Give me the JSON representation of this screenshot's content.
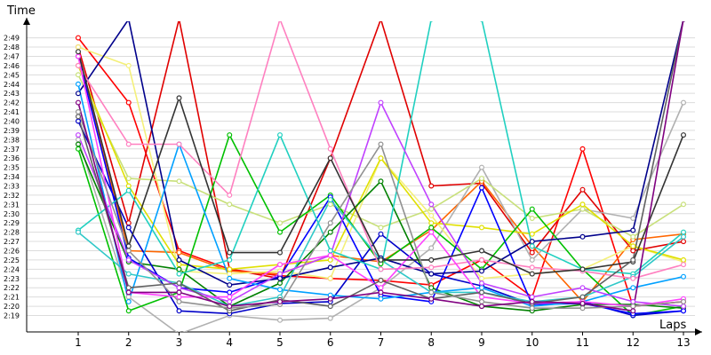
{
  "chart_data": {
    "type": "line",
    "xlabel": "Laps",
    "ylabel": "Time",
    "x": [
      1,
      2,
      3,
      4,
      5,
      6,
      7,
      8,
      9,
      10,
      11,
      12,
      13
    ],
    "y_ticks": [
      "2:19",
      "2:20",
      "2:21",
      "2:22",
      "2:23",
      "2:24",
      "2:25",
      "2:26",
      "2:27",
      "2:28",
      "2:29",
      "2:30",
      "2:31",
      "2:32",
      "2:33",
      "2:34",
      "2:35",
      "2:36",
      "2:37",
      "2:38",
      "2:39",
      "2:40",
      "2:41",
      "2:42",
      "2:43",
      "2:44",
      "2:45",
      "2:46",
      "2:47",
      "2:48",
      "2:49"
    ],
    "ylim_seconds": [
      138.3,
      171
    ],
    "grid": true,
    "legend": "none",
    "series": [
      {
        "color": "#ff0000",
        "values": [
          169,
          162,
          146,
          144,
          143.3,
          143,
          142.8,
          142.3,
          145,
          141,
          157,
          140,
          140.5
        ]
      },
      {
        "color": "#e00000",
        "values": [
          168,
          149,
          171,
          144,
          143,
          156,
          171,
          153,
          153.3,
          145.8,
          152.6,
          146,
          147
        ]
      },
      {
        "color": "#ff6600",
        "values": [
          167,
          146,
          145.8,
          143.8,
          143.5,
          145.5,
          144.8,
          148.2,
          153.5,
          146.5,
          140.5,
          147.2,
          147.8
        ]
      },
      {
        "color": "#b0b0b0",
        "values": [
          158,
          141,
          137,
          139,
          138.5,
          138.7,
          142,
          146.3,
          155,
          145,
          150.5,
          149.5,
          162
        ]
      },
      {
        "color": "#c8e07a",
        "values": [
          165,
          153.8,
          153.5,
          151,
          149,
          151,
          148.5,
          150.5,
          153.8,
          149.5,
          150.5,
          147.5,
          151
        ]
      },
      {
        "color": "#f4f07a",
        "values": [
          168,
          166,
          143.8,
          143.5,
          143.8,
          143,
          156,
          149.8,
          143,
          143.5,
          144,
          146.5,
          144.8
        ]
      },
      {
        "color": "#e0e000",
        "values": [
          166,
          153,
          144.5,
          144,
          144.5,
          145,
          156,
          149,
          148.5,
          147.8,
          151,
          146.5,
          145
        ]
      },
      {
        "color": "#00c000",
        "values": [
          157,
          139.5,
          141.5,
          158.5,
          148,
          152,
          144.6,
          148.5,
          144,
          150.5,
          144,
          139,
          140
        ]
      },
      {
        "color": "#008000",
        "values": [
          157.5,
          144.8,
          144,
          140,
          142.5,
          148,
          153.5,
          142,
          140,
          139.5,
          140.2,
          140.2,
          139.8
        ]
      },
      {
        "color": "#0000c8",
        "values": [
          160,
          148.5,
          139.5,
          139.2,
          140.3,
          140.5,
          147.8,
          143.5,
          142.2,
          140.2,
          140.5,
          139,
          139.5
        ]
      },
      {
        "color": "#0000ff",
        "values": [
          167,
          145.2,
          142,
          141.5,
          143.2,
          151.8,
          141.2,
          140.5,
          152.8,
          140.2,
          140.3,
          139.2,
          139.5
        ]
      },
      {
        "color": "#00008b",
        "values": [
          163,
          171,
          145,
          142.3,
          143,
          144.2,
          145.2,
          143.5,
          143.8,
          147,
          147.5,
          148.2,
          171
        ]
      },
      {
        "color": "#00a0ff",
        "values": [
          164,
          140.5,
          157.5,
          143,
          141.8,
          141.2,
          140.8,
          141.5,
          142,
          140,
          140.5,
          142,
          143.2
        ]
      },
      {
        "color": "#20d0c0",
        "values": [
          148.2,
          152.5,
          143.5,
          145,
          158.5,
          146,
          144,
          171,
          171,
          146.5,
          144,
          143.5,
          148
        ]
      },
      {
        "color": "#30c8c8",
        "values": [
          148,
          143.5,
          142.5,
          140,
          141,
          151.5,
          145,
          141.5,
          141.5,
          140.5,
          141,
          143.2,
          147.5
        ]
      },
      {
        "color": "#ff80c0",
        "values": [
          166,
          157.5,
          157.5,
          152,
          171,
          157,
          144,
          144.2,
          145,
          144.2,
          143.8,
          143,
          144.5
        ]
      },
      {
        "color": "#c040ff",
        "values": [
          158.5,
          145,
          142,
          140.5,
          143.5,
          145.5,
          162,
          151,
          142.5,
          141,
          142,
          140.5,
          140
        ]
      },
      {
        "color": "#ff40ff",
        "values": [
          167,
          141.5,
          141,
          141,
          144.5,
          145.5,
          142,
          148,
          141,
          140.3,
          140.5,
          140,
          140.8
        ]
      },
      {
        "color": "#333333",
        "values": [
          167.5,
          146.5,
          162.5,
          145.8,
          145.8,
          156,
          145,
          145,
          146,
          143.5,
          144,
          144.8,
          158.5
        ]
      },
      {
        "color": "#606060",
        "values": [
          160.5,
          142,
          142.5,
          139.5,
          140.7,
          140,
          142.8,
          140.8,
          141.5,
          140.3,
          141,
          145,
          171
        ]
      },
      {
        "color": "#909090",
        "values": [
          161,
          146,
          140.5,
          139.8,
          140.2,
          149,
          157.5,
          141.5,
          140.5,
          139.8,
          139.8,
          140,
          140.5
        ]
      },
      {
        "color": "#800080",
        "values": [
          162,
          141.5,
          141.5,
          140,
          140.5,
          140.8,
          141.5,
          140.8,
          140,
          140.5,
          140.3,
          139.5,
          171
        ]
      }
    ]
  }
}
